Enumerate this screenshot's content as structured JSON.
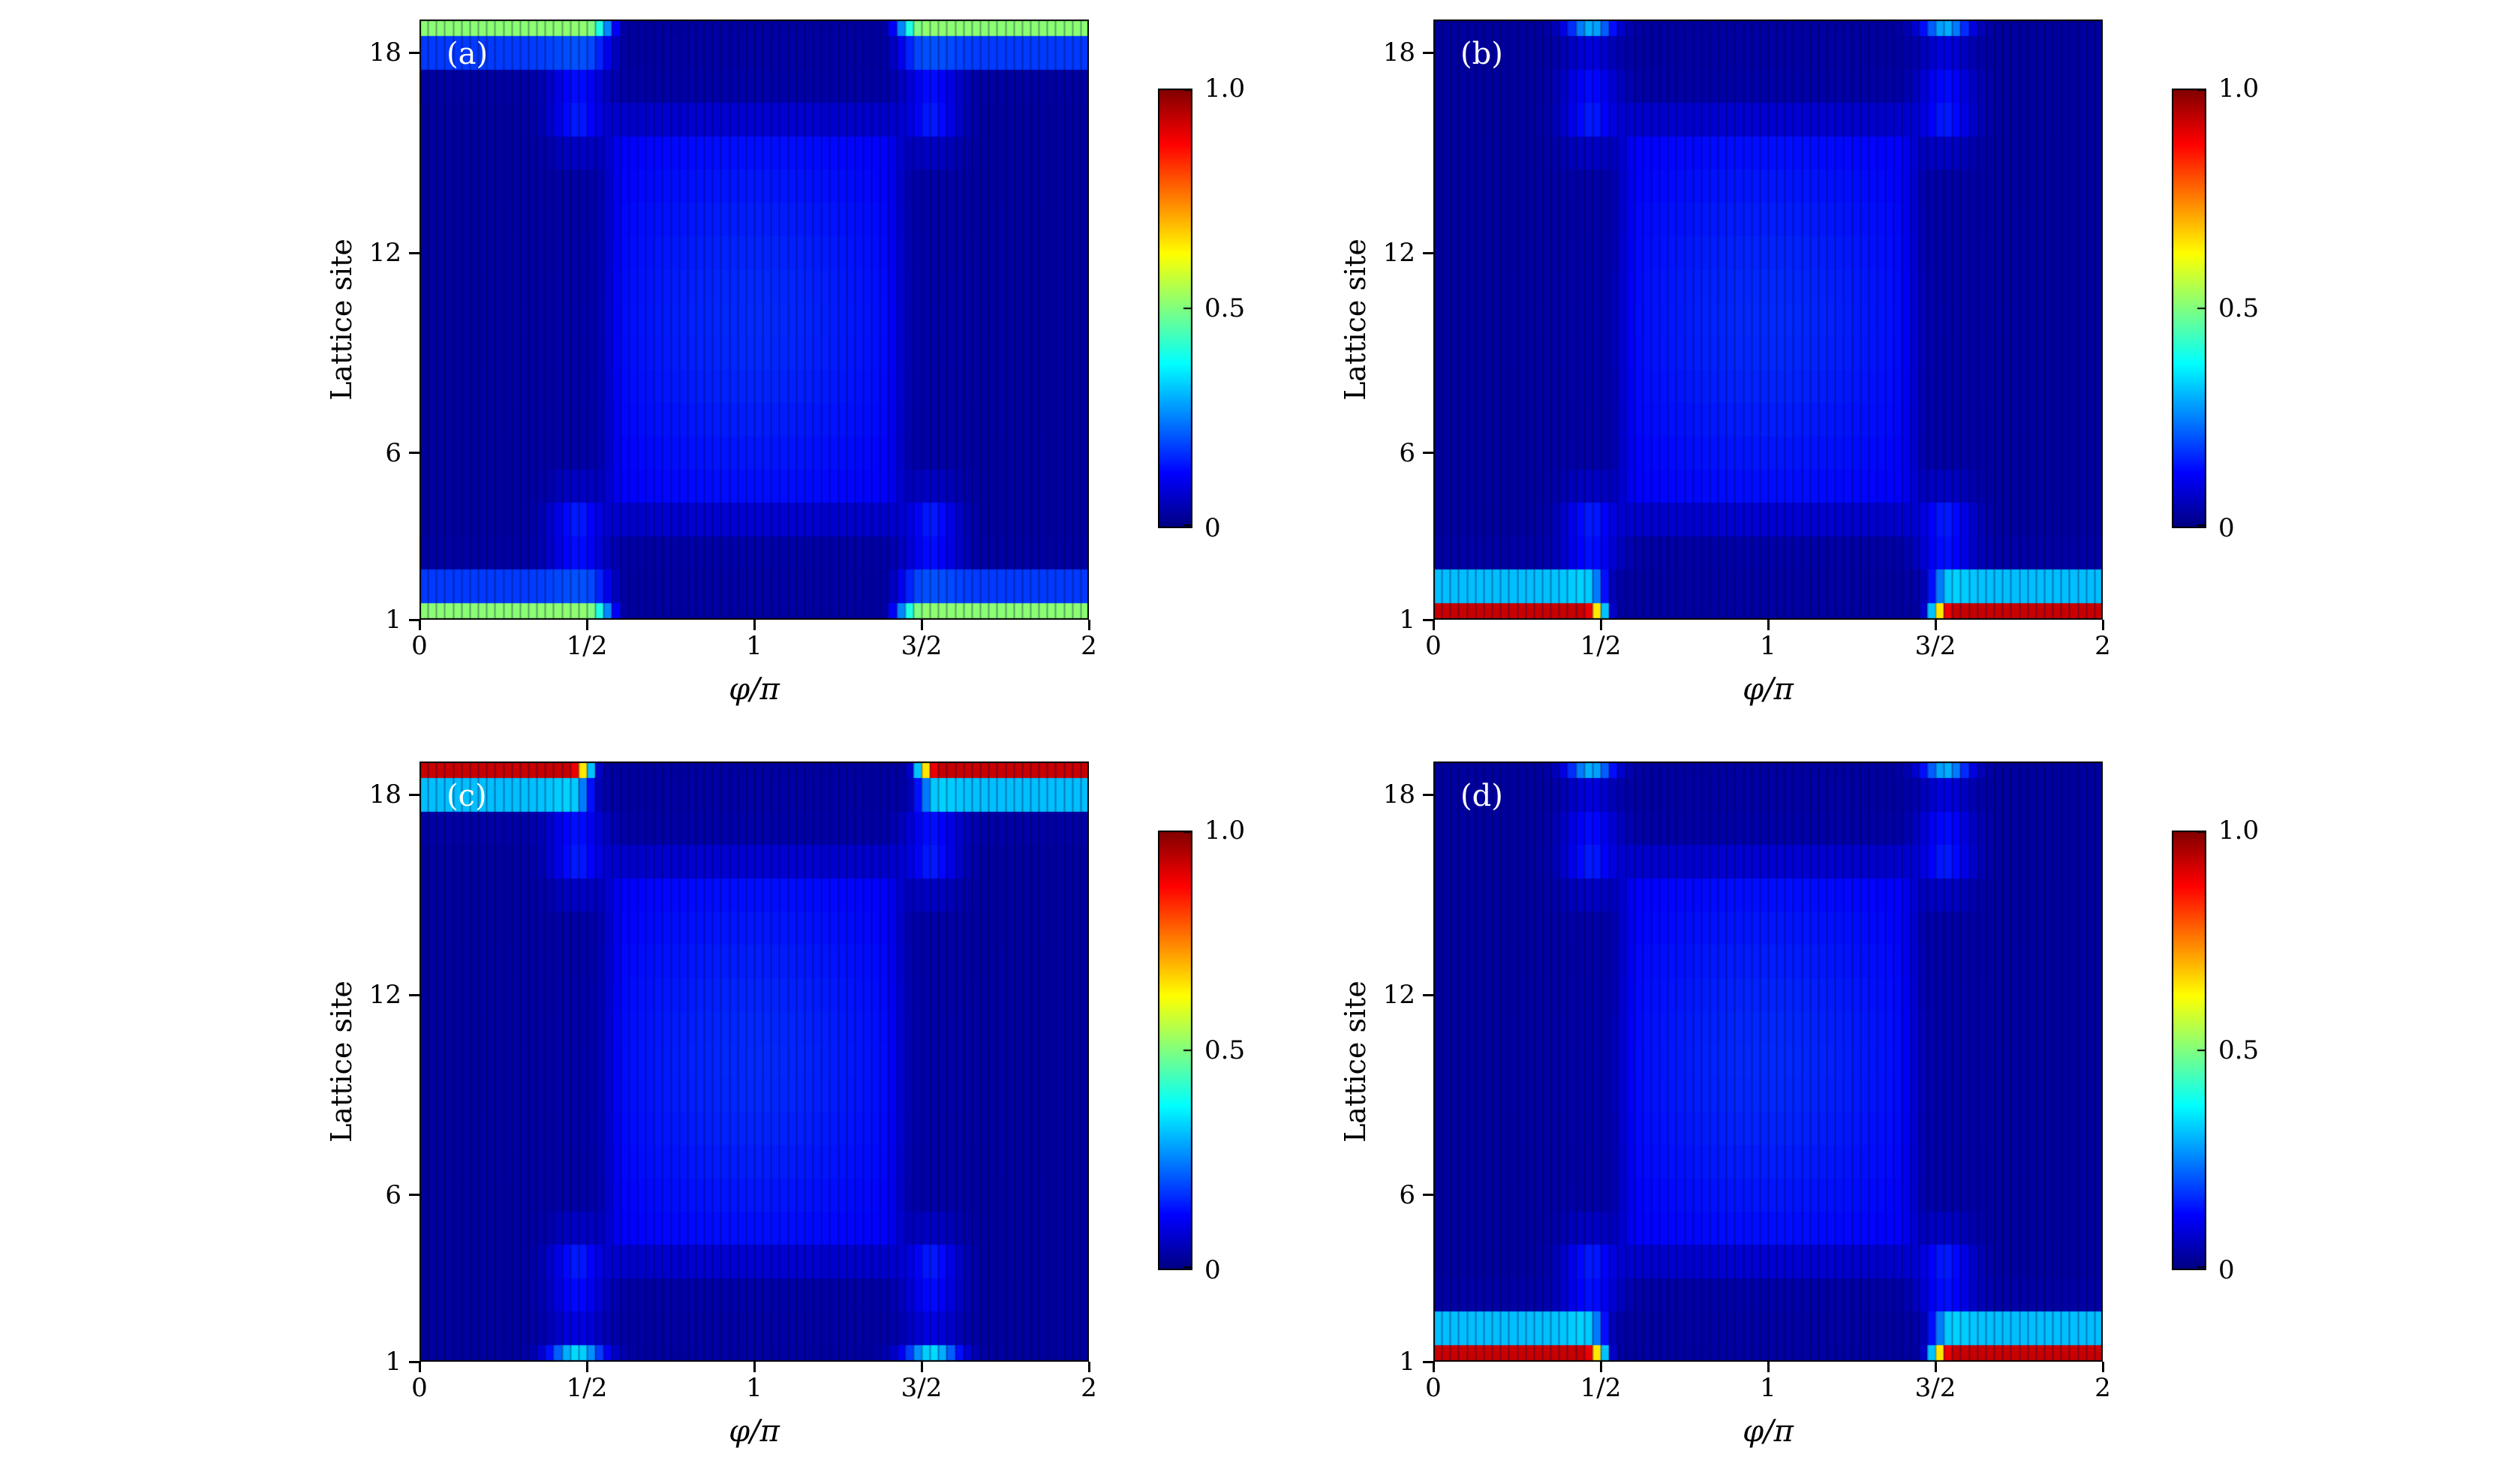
{
  "figure": {
    "description": "Four jet-colormap heatmaps (a)-(d) of edge-state probability density versus pump phase and lattice site",
    "colormap": "jet",
    "colors": {
      "low": "#00008f",
      "mid": "#80ff80",
      "high": "#800000",
      "background": "#ffffff",
      "panel_label_color": "#ffffff"
    }
  },
  "axes": {
    "xlabel": "φ/π",
    "ylabel": "Lattice site",
    "x_range": [
      0,
      2
    ],
    "site_range": [
      1,
      19
    ],
    "x_ticks": [
      {
        "pos": 0,
        "label": "0"
      },
      {
        "pos": 0.5,
        "label": "1/2"
      },
      {
        "pos": 1,
        "label": "1"
      },
      {
        "pos": 1.5,
        "label": "3/2"
      },
      {
        "pos": 2,
        "label": "2"
      }
    ],
    "y_ticks": [
      {
        "pos": 1,
        "label": "1"
      },
      {
        "pos": 6,
        "label": "6"
      },
      {
        "pos": 12,
        "label": "12"
      },
      {
        "pos": 18,
        "label": "18"
      }
    ],
    "colorbar_range": [
      0,
      1
    ],
    "colorbar_ticks": [
      {
        "pos": 1,
        "label": "1.0"
      },
      {
        "pos": 0.5,
        "label": "0.5"
      },
      {
        "pos": 0,
        "label": "0"
      }
    ]
  },
  "chart_data": [
    {
      "type": "heatmap",
      "panel_label": "(a)",
      "xlabel": "φ/π",
      "ylabel": "Lattice site",
      "x_range": [
        0,
        2
      ],
      "site_range": [
        1,
        19
      ],
      "value_range": [
        0,
        1
      ],
      "summary": "Density ~0.5 (green) on both edge sites 1 and 19 for φ/π in [0,0.5] and [1.5,2]; delocalized faint blue bulk for φ/π in (0.5,1.5)",
      "background_level": 0.03,
      "bulk": {
        "phi_lo": 0.52,
        "phi_hi": 1.48,
        "site_lo": 3.2,
        "site_hi": 16.8,
        "soft_phi": 0.1,
        "soft_site": 1.8,
        "amp": 0.085,
        "center_amp": 0.05,
        "center_phi_w": 0.42,
        "center_site_w": 5.5
      },
      "blobs": [
        {
          "phi": 0.47,
          "site": 3.6,
          "phi_w": 0.08,
          "site_w": 1.2,
          "amp": 0.13
        },
        {
          "phi": 1.53,
          "site": 3.6,
          "phi_w": 0.08,
          "site_w": 1.2,
          "amp": 0.13
        },
        {
          "phi": 0.47,
          "site": 16.4,
          "phi_w": 0.08,
          "site_w": 1.2,
          "amp": 0.13
        },
        {
          "phi": 1.53,
          "site": 16.4,
          "phi_w": 0.08,
          "site_w": 1.2,
          "amp": 0.13
        }
      ],
      "edge_bands": [
        {
          "site": 19,
          "amp": 0.52,
          "phi_onset": 0.38,
          "phi_soft": 0.12,
          "site_w": 0.9
        },
        {
          "site": 1,
          "amp": 0.52,
          "phi_onset": 0.38,
          "phi_soft": 0.12,
          "site_w": 0.9
        }
      ]
    },
    {
      "type": "heatmap",
      "panel_label": "(b)",
      "xlabel": "φ/π",
      "ylabel": "Lattice site",
      "x_range": [
        0,
        2
      ],
      "site_range": [
        1,
        19
      ],
      "value_range": [
        0,
        1
      ],
      "summary": "Density ~1.0 (dark red) localized on edge site 1 for φ/π in [0,0.45] and [1.55,2]; small blue weight at site 19 near φ/π = 0.5 and 1.5; faint blue bulk in between",
      "background_level": 0.03,
      "bulk": {
        "phi_lo": 0.52,
        "phi_hi": 1.48,
        "site_lo": 3.2,
        "site_hi": 16.8,
        "soft_phi": 0.1,
        "soft_site": 1.8,
        "amp": 0.085,
        "center_amp": 0.05,
        "center_phi_w": 0.42,
        "center_site_w": 5.5
      },
      "blobs": [
        {
          "phi": 0.47,
          "site": 3.6,
          "phi_w": 0.08,
          "site_w": 1.2,
          "amp": 0.13
        },
        {
          "phi": 1.53,
          "site": 3.6,
          "phi_w": 0.08,
          "site_w": 1.2,
          "amp": 0.13
        },
        {
          "phi": 0.47,
          "site": 16.4,
          "phi_w": 0.08,
          "site_w": 1.2,
          "amp": 0.13
        },
        {
          "phi": 1.53,
          "site": 16.4,
          "phi_w": 0.08,
          "site_w": 1.2,
          "amp": 0.13
        },
        {
          "phi": 0.47,
          "site": 19,
          "phi_w": 0.07,
          "site_w": 0.7,
          "amp": 0.3
        },
        {
          "phi": 1.53,
          "site": 19,
          "phi_w": 0.07,
          "site_w": 0.7,
          "amp": 0.3
        }
      ],
      "edge_bands": [
        {
          "site": 1,
          "amp": 0.97,
          "phi_onset": 0.45,
          "phi_soft": 0.1,
          "site_w": 0.9
        }
      ]
    },
    {
      "type": "heatmap",
      "panel_label": "(c)",
      "xlabel": "φ/π",
      "ylabel": "Lattice site",
      "x_range": [
        0,
        2
      ],
      "site_range": [
        1,
        19
      ],
      "value_range": [
        0,
        1
      ],
      "summary": "Density ~1.0 (dark red) localized on edge site 19 for φ/π in [0,0.45] and [1.55,2]; cyan weight at site 1 near φ/π = 0.5 and 1.5; faint blue bulk in between",
      "background_level": 0.03,
      "bulk": {
        "phi_lo": 0.52,
        "phi_hi": 1.48,
        "site_lo": 3.2,
        "site_hi": 16.8,
        "soft_phi": 0.1,
        "soft_site": 1.8,
        "amp": 0.085,
        "center_amp": 0.05,
        "center_phi_w": 0.42,
        "center_site_w": 5.5
      },
      "blobs": [
        {
          "phi": 0.47,
          "site": 3.6,
          "phi_w": 0.08,
          "site_w": 1.2,
          "amp": 0.13
        },
        {
          "phi": 1.53,
          "site": 3.6,
          "phi_w": 0.08,
          "site_w": 1.2,
          "amp": 0.13
        },
        {
          "phi": 0.47,
          "site": 16.4,
          "phi_w": 0.08,
          "site_w": 1.2,
          "amp": 0.13
        },
        {
          "phi": 1.53,
          "site": 16.4,
          "phi_w": 0.08,
          "site_w": 1.2,
          "amp": 0.13
        },
        {
          "phi": 0.47,
          "site": 1,
          "phi_w": 0.08,
          "site_w": 0.7,
          "amp": 0.35
        },
        {
          "phi": 1.53,
          "site": 1,
          "phi_w": 0.08,
          "site_w": 0.7,
          "amp": 0.35
        }
      ],
      "edge_bands": [
        {
          "site": 19,
          "amp": 0.97,
          "phi_onset": 0.45,
          "phi_soft": 0.1,
          "site_w": 0.9
        }
      ]
    },
    {
      "type": "heatmap",
      "panel_label": "(d)",
      "xlabel": "φ/π",
      "ylabel": "Lattice site",
      "x_range": [
        0,
        2
      ],
      "site_range": [
        1,
        19
      ],
      "value_range": [
        0,
        1
      ],
      "summary": "Density ~1.0 (dark red) localized on edge site 1 for φ/π in [0,0.45] and [1.55,2]; small blue weight at site 19 near φ/π = 0.5 and 1.5; faint blue bulk in between",
      "background_level": 0.03,
      "bulk": {
        "phi_lo": 0.52,
        "phi_hi": 1.48,
        "site_lo": 3.2,
        "site_hi": 16.8,
        "soft_phi": 0.1,
        "soft_site": 1.8,
        "amp": 0.085,
        "center_amp": 0.05,
        "center_phi_w": 0.42,
        "center_site_w": 5.5
      },
      "blobs": [
        {
          "phi": 0.47,
          "site": 3.6,
          "phi_w": 0.08,
          "site_w": 1.2,
          "amp": 0.13
        },
        {
          "phi": 1.53,
          "site": 3.6,
          "phi_w": 0.08,
          "site_w": 1.2,
          "amp": 0.13
        },
        {
          "phi": 0.47,
          "site": 16.4,
          "phi_w": 0.08,
          "site_w": 1.2,
          "amp": 0.13
        },
        {
          "phi": 1.53,
          "site": 16.4,
          "phi_w": 0.08,
          "site_w": 1.2,
          "amp": 0.13
        },
        {
          "phi": 0.47,
          "site": 19,
          "phi_w": 0.07,
          "site_w": 0.7,
          "amp": 0.3
        },
        {
          "phi": 1.53,
          "site": 19,
          "phi_w": 0.07,
          "site_w": 0.7,
          "amp": 0.3
        }
      ],
      "edge_bands": [
        {
          "site": 1,
          "amp": 0.97,
          "phi_onset": 0.45,
          "phi_soft": 0.1,
          "site_w": 0.9
        }
      ]
    }
  ]
}
